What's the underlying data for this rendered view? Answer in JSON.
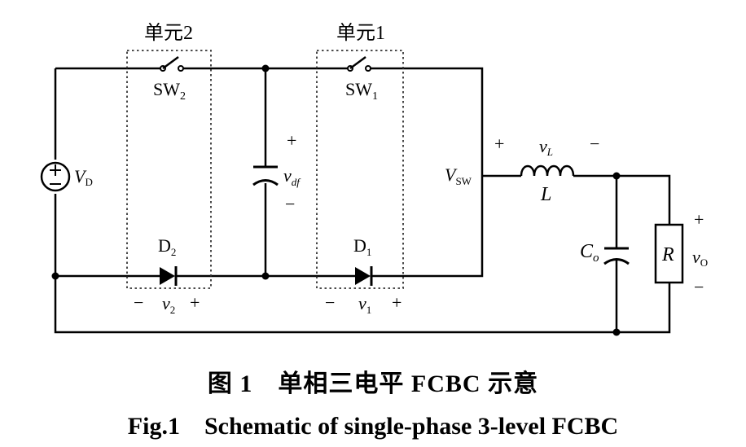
{
  "figure": {
    "unit2_label": "单元2",
    "unit1_label": "单元1",
    "source_label": "V",
    "source_sub": "D",
    "sw2_label": "SW",
    "sw2_sub": "2",
    "sw1_label": "SW",
    "sw1_sub": "1",
    "cap_label": "v",
    "cap_sub": "df",
    "vsw_label": "V",
    "vsw_sub": "SW",
    "vl_label": "v",
    "vl_sub": "L",
    "inductor_label": "L",
    "co_label": "C",
    "co_sub": "o",
    "r_label": "R",
    "vo_label": "v",
    "vo_sub": "O",
    "d2_label": "D",
    "d2_sub": "2",
    "d1_label": "D",
    "d1_sub": "1",
    "v2_label": "v",
    "v2_sub": "2",
    "v1_label": "v",
    "v1_sub": "1",
    "plus": "+",
    "minus": "−"
  },
  "caption": {
    "chinese": "图 1　单相三电平 FCBC 示意",
    "english": "Fig.1　Schematic of single-phase 3-level FCBC"
  }
}
